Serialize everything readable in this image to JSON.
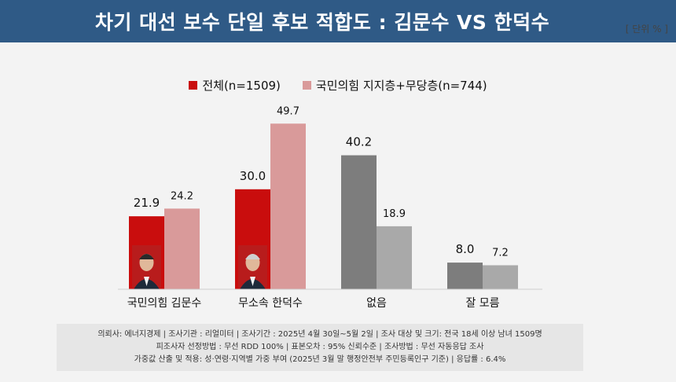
{
  "header": {
    "title": "차기 대선 보수 단일 후보 적합도 : 김문수 VS 한덕수",
    "unit": "[ 단위 % ]"
  },
  "colors": {
    "header_bg": "#2f5a86",
    "series_a": "#c90d0d",
    "series_b": "#d99a9a",
    "neutral_a": "#7d7d7d",
    "neutral_b": "#a9a9a9"
  },
  "chart_data": {
    "type": "bar",
    "categories": [
      "국민의힘 김문수",
      "무소속 한덕수",
      "없음",
      "잘 모름"
    ],
    "series": [
      {
        "name": "전체(n=1509)",
        "values": [
          21.9,
          30.0,
          40.2,
          8.0
        ]
      },
      {
        "name": "국민의힘 지지층+무당층(n=744)",
        "values": [
          24.2,
          49.7,
          18.9,
          7.2
        ]
      }
    ],
    "value_labels": [
      [
        "21.9",
        "30.0",
        "40.2",
        "8.0"
      ],
      [
        "24.2",
        "49.7",
        "18.9",
        "7.2"
      ]
    ],
    "ylim": [
      0,
      50
    ],
    "grid": false,
    "legend": "top-center",
    "neutral_categories": [
      2,
      3
    ]
  },
  "footer": {
    "line1": "의뢰사: 에너지경제 | 조사기관 : 리얼미터 | 조사기간 : 2025년 4월 30일~5월 2일 | 조사 대상 및 크기: 전국 18세 이상 남녀 1509명",
    "line2": "피조사자 선정방법 : 무선 RDD 100% | 표본오차 : 95% 신뢰수준 | 조사방법 : 무선 자동응답 조사",
    "line3": "가중값 산출 및 적용: 성·연령·지역별 가중 부여 (2025년 3월 말 행정안전부 주민등록인구 기준) | 응답률 : 6.4%"
  }
}
